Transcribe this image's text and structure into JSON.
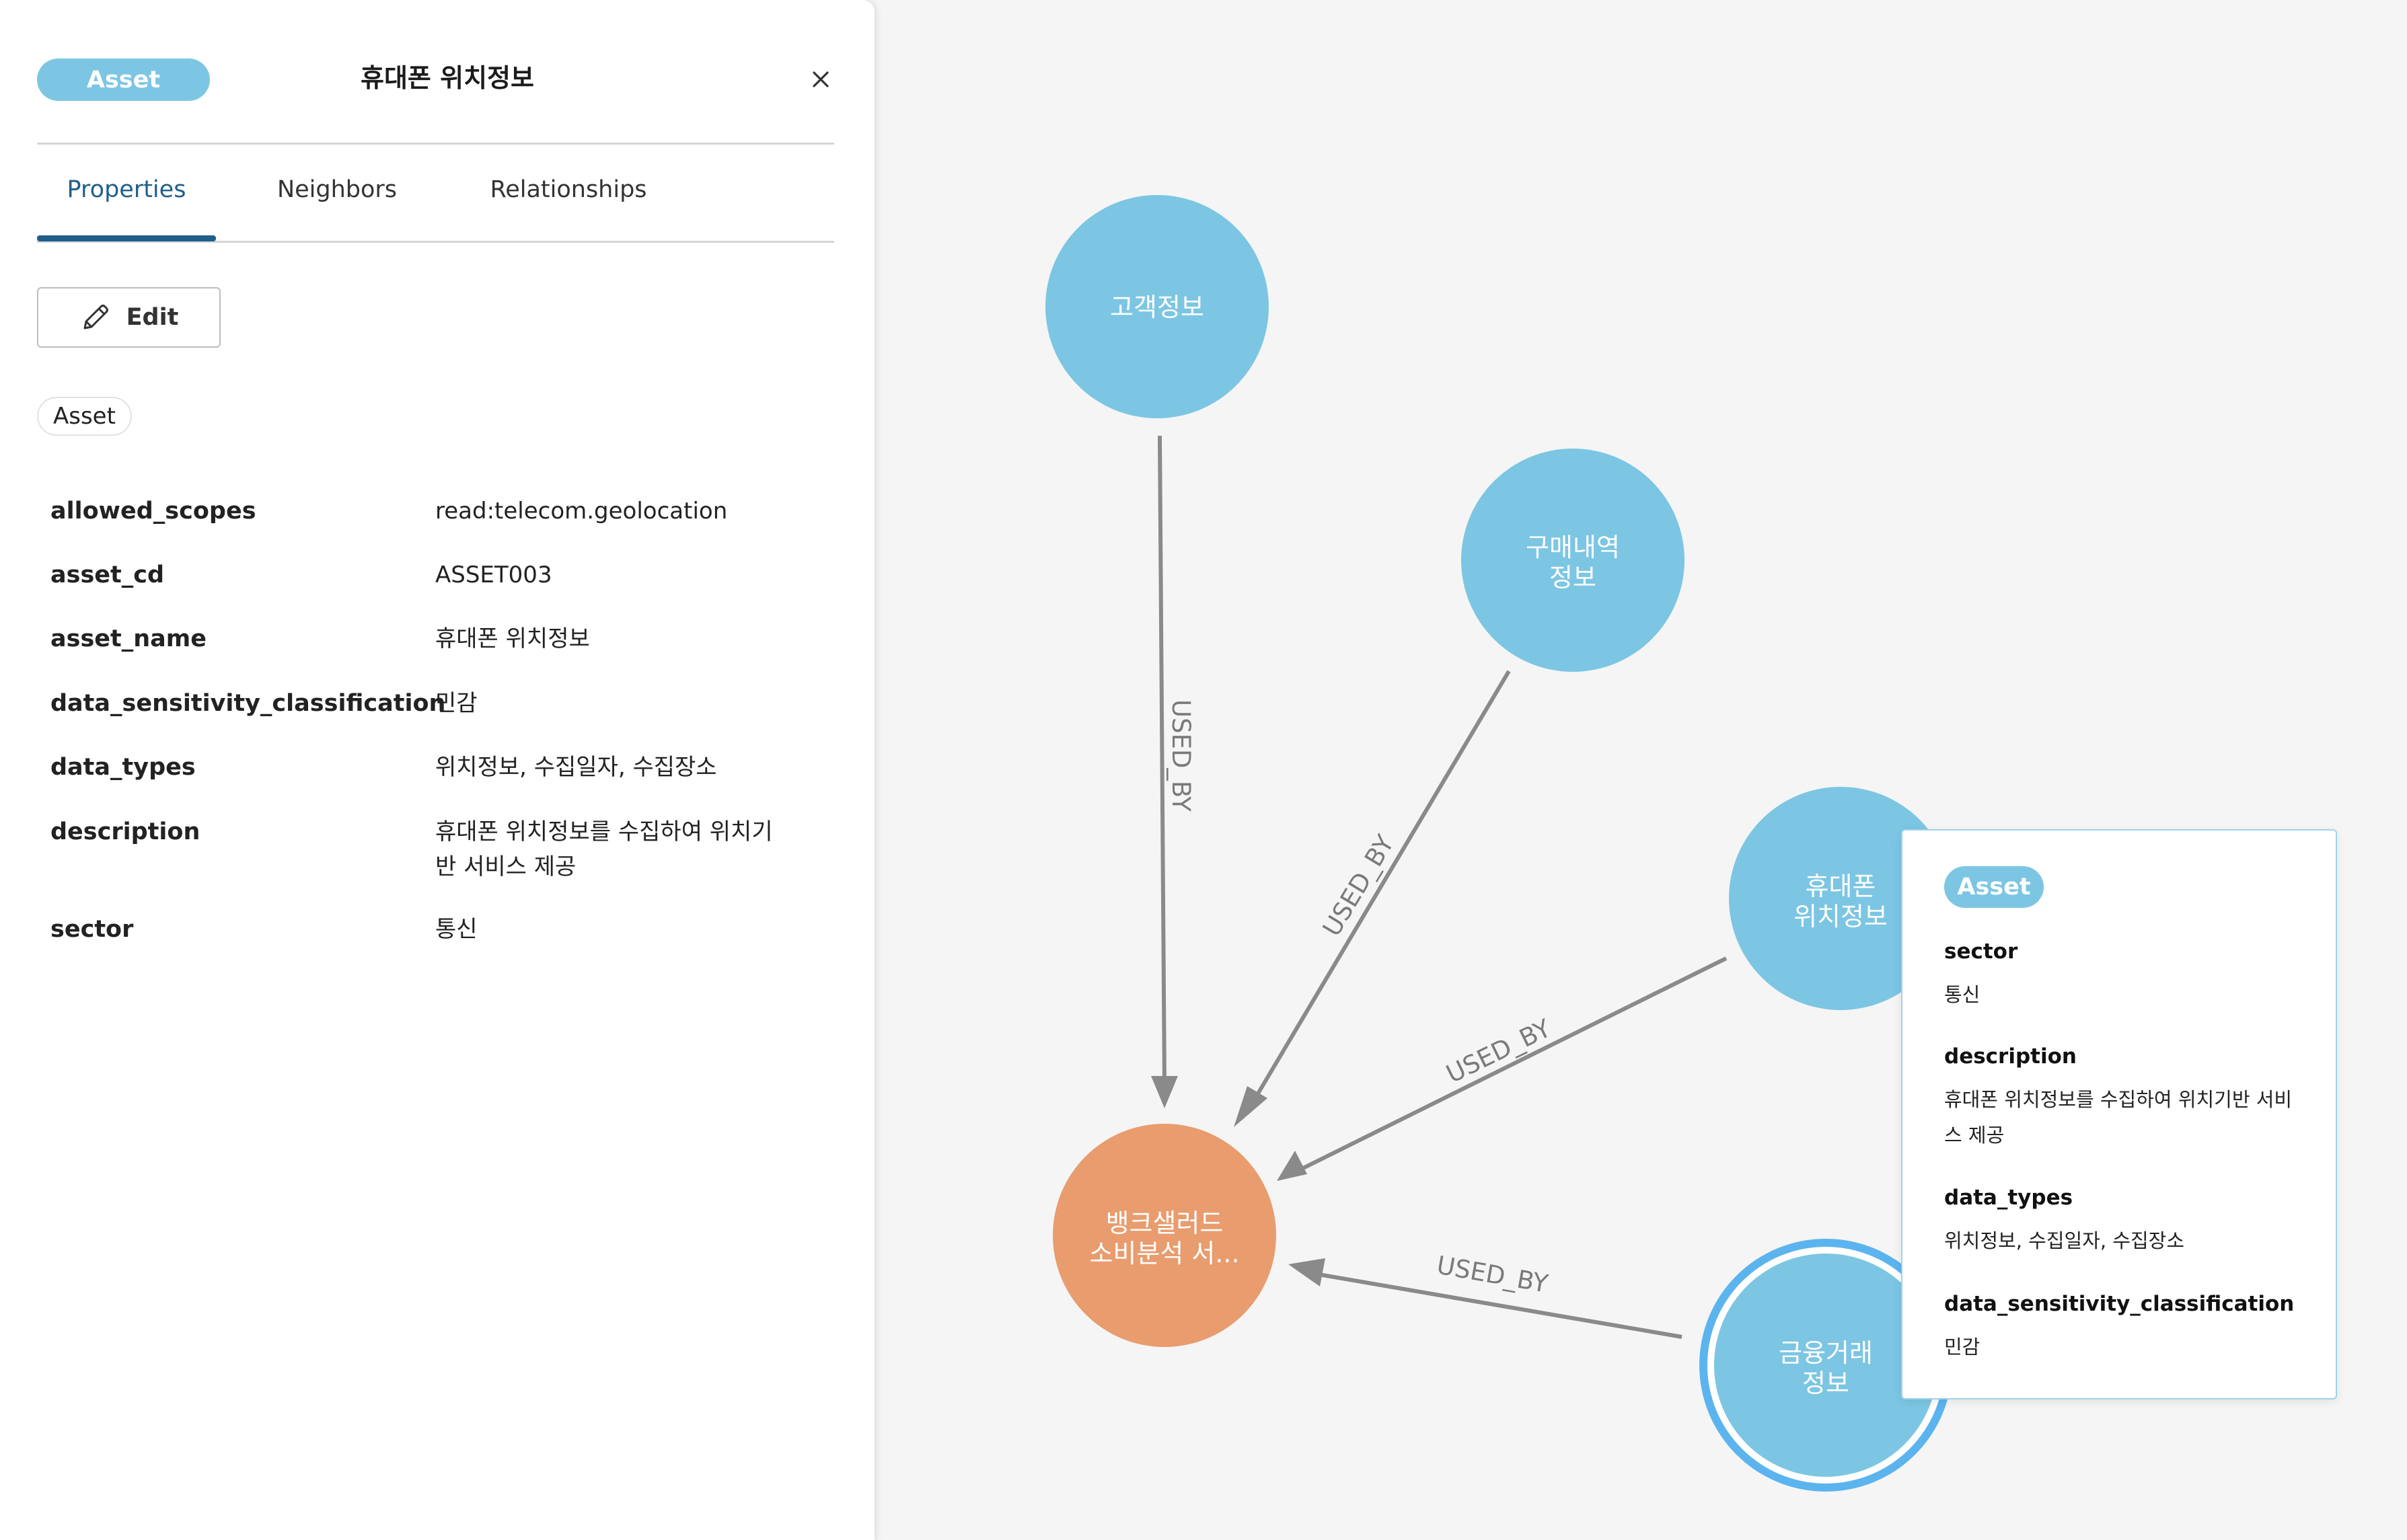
{
  "panel": {
    "label_pill": "Asset",
    "title": "휴대폰 위치정보",
    "close_icon": "close-icon",
    "tabs": [
      {
        "label": "Properties",
        "active": true
      },
      {
        "label": "Neighbors",
        "active": false
      },
      {
        "label": "Relationships",
        "active": false
      }
    ],
    "edit_label": "Edit",
    "edit_icon": "pencil-icon",
    "chip": "Asset",
    "properties": [
      {
        "key": "allowed_scopes",
        "value": "read:telecom.geolocation"
      },
      {
        "key": "asset_cd",
        "value": "ASSET003"
      },
      {
        "key": "asset_name",
        "value": "휴대폰 위치정보"
      },
      {
        "key": "data_sensitivity_classification",
        "value": "민감"
      },
      {
        "key": "data_types",
        "value": "위치정보, 수집일자, 수집장소"
      },
      {
        "key": "description",
        "value": "휴대폰 위치정보를 수집하여 위치기반 서비스 제공"
      },
      {
        "key": "sector",
        "value": "통신"
      }
    ]
  },
  "graph": {
    "colors": {
      "asset_node": "#7cc6e3",
      "service_node": "#e99c6e",
      "edge": "#8a8a8a",
      "selected_ring": "#5cb4ef"
    },
    "nodes": [
      {
        "id": "n1",
        "label": [
          "고객정보"
        ]
      },
      {
        "id": "n2",
        "label": [
          "구매내역",
          "정보"
        ]
      },
      {
        "id": "n3",
        "label": [
          "휴대폰",
          "위치정보"
        ]
      },
      {
        "id": "n4",
        "label": [
          "금융거래",
          "정보"
        ]
      },
      {
        "id": "n5",
        "label": [
          "뱅크샐러드",
          "소비분석 서..."
        ]
      }
    ],
    "edge_label": "USED_BY"
  },
  "tooltip": {
    "pill": "Asset",
    "fields": [
      {
        "key": "sector",
        "value": "통신"
      },
      {
        "key": "description",
        "value": "휴대폰 위치정보를 수집하여 위치기반 서비스 제공"
      },
      {
        "key": "data_types",
        "value": "위치정보, 수집일자, 수집장소"
      },
      {
        "key": "data_sensitivity_classification",
        "value": "민감"
      }
    ]
  }
}
